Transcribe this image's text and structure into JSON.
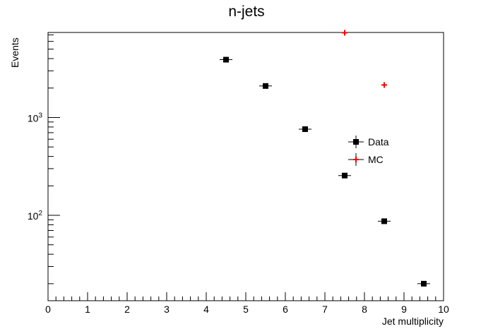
{
  "chart_data": {
    "type": "scatter",
    "title": "n-jets",
    "xlabel": "Jet multiplicity",
    "ylabel": "Events",
    "xlim": [
      0,
      10
    ],
    "ylim": [
      13.4,
      7400
    ],
    "yscale": "log",
    "grid": false,
    "legend_position": "center-right",
    "x_ticks": [
      "0",
      "1",
      "2",
      "3",
      "4",
      "5",
      "6",
      "7",
      "8",
      "9",
      "10"
    ],
    "y_ticks": [
      {
        "value": 100,
        "base": "10",
        "exp": "2"
      },
      {
        "value": 1000,
        "base": "10",
        "exp": "3"
      }
    ],
    "series": [
      {
        "name": "Data",
        "color": "#000000",
        "marker": "square",
        "x": [
          4.5,
          5.5,
          6.5,
          7.5,
          8.5,
          9.5
        ],
        "y": [
          3900,
          2100,
          760,
          255,
          87,
          20
        ]
      },
      {
        "name": "MC",
        "color": "#ff0000",
        "marker": "cross",
        "x": [
          7.5,
          8.5
        ],
        "y": [
          7350,
          2150
        ]
      }
    ]
  }
}
